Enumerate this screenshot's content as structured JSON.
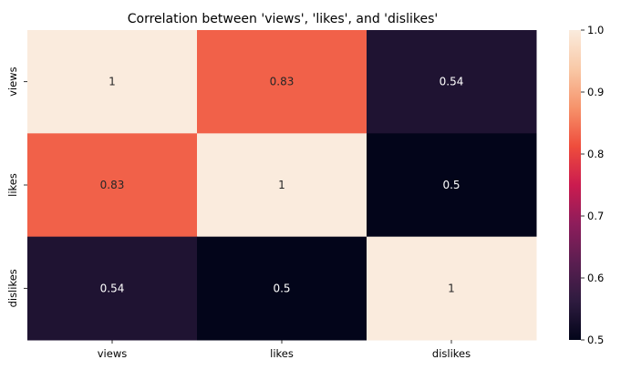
{
  "chart_data": {
    "type": "heatmap",
    "title": "Correlation between 'views', 'likes', and 'dislikes'",
    "x_labels": [
      "views",
      "likes",
      "dislikes"
    ],
    "y_labels": [
      "views",
      "likes",
      "dislikes"
    ],
    "values": [
      [
        1.0,
        0.83,
        0.54
      ],
      [
        0.83,
        1.0,
        0.5
      ],
      [
        0.54,
        0.5,
        1.0
      ]
    ],
    "annotations": [
      [
        "1",
        "0.83",
        "0.54"
      ],
      [
        "0.83",
        "1",
        "0.5"
      ],
      [
        "0.54",
        "0.5",
        "1"
      ]
    ],
    "colorbar": {
      "min": 0.5,
      "max": 1.0,
      "ticks": [
        0.5,
        0.6,
        0.7,
        0.8,
        0.9,
        1.0
      ],
      "tick_labels": [
        "0.5",
        "0.6",
        "0.7",
        "0.8",
        "0.9",
        "1.0"
      ],
      "colormap": "rocket",
      "colormap_stops": [
        "#03051a",
        "#2e1b3f",
        "#5b1e51",
        "#8e1d5b",
        "#cb1b4f",
        "#ef4d3c",
        "#f6936b",
        "#f9c9a7",
        "#faebdd"
      ]
    },
    "grid": false
  }
}
